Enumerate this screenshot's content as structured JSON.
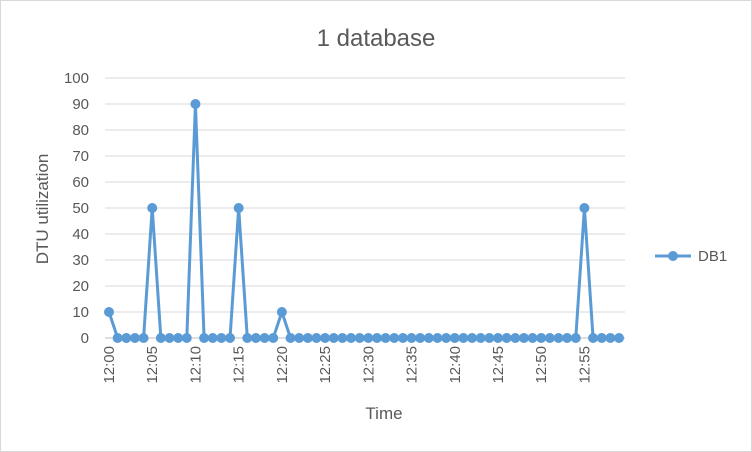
{
  "chart_data": {
    "type": "line",
    "title": "1 database",
    "xlabel": "Time",
    "ylabel": "DTU utilization",
    "ylim": [
      0,
      100
    ],
    "y_ticks": [
      "0",
      "10",
      "20",
      "30",
      "40",
      "50",
      "60",
      "70",
      "80",
      "90",
      "100"
    ],
    "x_tick_labels": [
      "12:00",
      "12:05",
      "12:10",
      "12:15",
      "12:20",
      "12:25",
      "12:30",
      "12:35",
      "12:40",
      "12:45",
      "12:50",
      "12:55"
    ],
    "categories": [
      "12:00",
      "12:01",
      "12:02",
      "12:03",
      "12:04",
      "12:05",
      "12:06",
      "12:07",
      "12:08",
      "12:09",
      "12:10",
      "12:11",
      "12:12",
      "12:13",
      "12:14",
      "12:15",
      "12:16",
      "12:17",
      "12:18",
      "12:19",
      "12:20",
      "12:21",
      "12:22",
      "12:23",
      "12:24",
      "12:25",
      "12:26",
      "12:27",
      "12:28",
      "12:29",
      "12:30",
      "12:31",
      "12:32",
      "12:33",
      "12:34",
      "12:35",
      "12:36",
      "12:37",
      "12:38",
      "12:39",
      "12:40",
      "12:41",
      "12:42",
      "12:43",
      "12:44",
      "12:45",
      "12:46",
      "12:47",
      "12:48",
      "12:49",
      "12:50",
      "12:51",
      "12:52",
      "12:53",
      "12:54",
      "12:55",
      "12:56",
      "12:57",
      "12:58",
      "12:59"
    ],
    "series": [
      {
        "name": "DB1",
        "color": "#5b9bd5",
        "values": [
          10,
          0,
          0,
          0,
          0,
          50,
          0,
          0,
          0,
          0,
          90,
          0,
          0,
          0,
          0,
          50,
          0,
          0,
          0,
          0,
          10,
          0,
          0,
          0,
          0,
          0,
          0,
          0,
          0,
          0,
          0,
          0,
          0,
          0,
          0,
          0,
          0,
          0,
          0,
          0,
          0,
          0,
          0,
          0,
          0,
          0,
          0,
          0,
          0,
          0,
          0,
          0,
          0,
          0,
          0,
          50,
          0,
          0,
          0,
          0
        ]
      }
    ],
    "grid": true,
    "legend_position": "right"
  }
}
